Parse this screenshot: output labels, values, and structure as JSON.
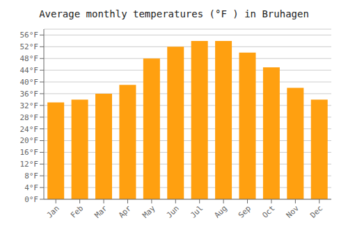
{
  "chart_data": {
    "type": "bar",
    "title": "Average monthly temperatures (°F ) in Bruhagen",
    "categories": [
      "Jan",
      "Feb",
      "Mar",
      "Apr",
      "May",
      "Jun",
      "Jul",
      "Aug",
      "Sep",
      "Oct",
      "Nov",
      "Dec"
    ],
    "values": [
      33,
      34,
      36,
      39,
      48,
      52,
      54,
      54,
      50,
      45,
      38,
      34
    ],
    "color": "#FFA010",
    "ylim": [
      0,
      58
    ],
    "yticks": [
      {
        "value": 0,
        "label": "0°F"
      },
      {
        "value": 4,
        "label": "4°F"
      },
      {
        "value": 8,
        "label": "8°F"
      },
      {
        "value": 12,
        "label": "12°F"
      },
      {
        "value": 16,
        "label": "16°F"
      },
      {
        "value": 20,
        "label": "20°F"
      },
      {
        "value": 24,
        "label": "24°F"
      },
      {
        "value": 28,
        "label": "28°F"
      },
      {
        "value": 32,
        "label": "32°F"
      },
      {
        "value": 36,
        "label": "36°F"
      },
      {
        "value": 40,
        "label": "40°F"
      },
      {
        "value": 44,
        "label": "44°F"
      },
      {
        "value": 48,
        "label": "48°F"
      },
      {
        "value": 52,
        "label": "52°F"
      },
      {
        "value": 56,
        "label": "56°F"
      }
    ],
    "grid": true
  }
}
